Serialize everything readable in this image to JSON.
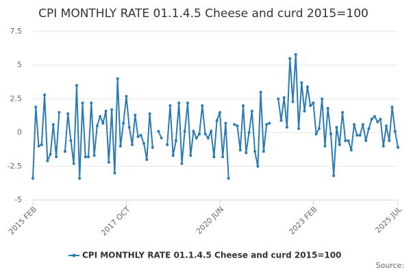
{
  "chart_data": {
    "type": "line",
    "title": "CPI MONTHLY RATE 01.1.4.5 Cheese and curd 2015=100",
    "source": "Source:",
    "categories": [
      "2015 FEB",
      null,
      null,
      null,
      null,
      null,
      null,
      null,
      null,
      null,
      null,
      null,
      null,
      null,
      null,
      null,
      null,
      null,
      null,
      null,
      null,
      null,
      null,
      null,
      null,
      null,
      null,
      null,
      null,
      null,
      null,
      null,
      "2017 OCT",
      null,
      null,
      null,
      null,
      null,
      null,
      null,
      null,
      null,
      null,
      null,
      null,
      null,
      null,
      null,
      null,
      null,
      null,
      null,
      null,
      null,
      null,
      null,
      null,
      null,
      null,
      null,
      null,
      null,
      null,
      null,
      "2020 JUN",
      null,
      null,
      null,
      null,
      null,
      null,
      null,
      null,
      null,
      null,
      null,
      null,
      null,
      null,
      null,
      null,
      null,
      null,
      null,
      null,
      null,
      null,
      null,
      null,
      null,
      null,
      null,
      null,
      null,
      null,
      null,
      "2023 FEB",
      null,
      null,
      null,
      null,
      null,
      null,
      null,
      null,
      null,
      null,
      null,
      null,
      null,
      null,
      null,
      null,
      null,
      null,
      null,
      null,
      null,
      null,
      null,
      null,
      null,
      null,
      null,
      null,
      "2025 JUL"
    ],
    "series": [
      {
        "name": "CPI MONTHLY RATE 01.1.4.5 Cheese and curd 2015=100",
        "color": "#2a7ab4",
        "values": [
          -3.4,
          1.9,
          -1.0,
          -0.9,
          2.8,
          -2.1,
          -1.6,
          0.6,
          -1.8,
          1.5,
          null,
          -1.4,
          1.4,
          -0.6,
          -2.3,
          3.5,
          -3.4,
          2.2,
          -1.8,
          -1.8,
          2.2,
          -1.7,
          0.5,
          1.2,
          0.7,
          1.6,
          -2.2,
          1.7,
          -3.0,
          4.0,
          -1.0,
          0.7,
          2.7,
          0.4,
          -0.9,
          1.3,
          -0.3,
          -0.2,
          -0.8,
          -2.0,
          1.4,
          -1.1,
          null,
          0.1,
          -0.4,
          null,
          -0.9,
          2.0,
          -1.7,
          -0.6,
          2.2,
          -2.3,
          0.1,
          2.2,
          -1.7,
          0.1,
          -0.4,
          -0.1,
          2.0,
          -0.1,
          -0.4,
          0.1,
          -1.8,
          0.9,
          1.5,
          -1.8,
          0.7,
          -3.4,
          null,
          0.6,
          0.5,
          -1.3,
          2.0,
          -1.5,
          0.0,
          1.6,
          -1.4,
          -2.5,
          3.0,
          -1.4,
          0.6,
          0.7,
          null,
          null,
          2.5,
          0.9,
          2.6,
          0.4,
          5.5,
          2.3,
          5.8,
          0.3,
          3.7,
          1.6,
          3.4,
          2.0,
          2.2,
          -0.1,
          0.3,
          2.5,
          -1.0,
          1.8,
          -0.1,
          -3.2,
          0.4,
          -0.9,
          1.5,
          -0.6,
          -0.6,
          -1.3,
          0.6,
          -0.2,
          -0.2,
          0.6,
          -0.6,
          0.3,
          1.0,
          1.2,
          0.8,
          1.0,
          -1.0,
          0.5,
          -0.6,
          1.9,
          0.1,
          -1.1
        ]
      }
    ],
    "ylim": [
      -5,
      7.5
    ],
    "yticks": [
      -5,
      -2.5,
      0,
      2.5,
      5,
      7.5
    ],
    "grid": true
  }
}
